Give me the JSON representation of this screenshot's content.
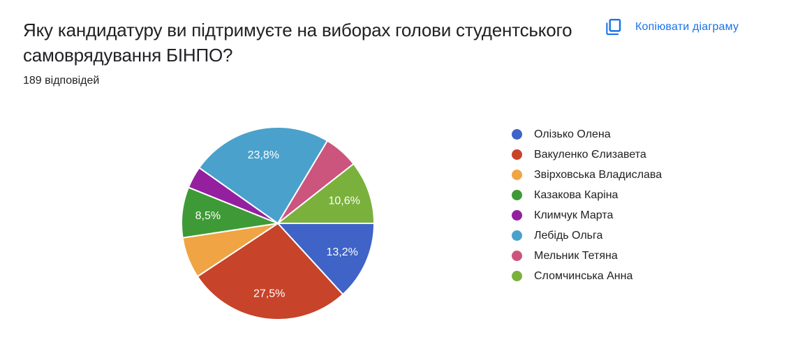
{
  "header": {
    "title": "Яку кандидатуру ви підтримуєте на виборах голови студентського самоврядування БІНПО?",
    "responses_count": "189 відповідей",
    "copy_button_label": "Копіювати діаграму",
    "copy_button_icon": "copy-icon"
  },
  "colors": {
    "accent": "#1a73e8",
    "text_primary": "#202124",
    "background": "#ffffff",
    "slice_label": "#ffffff",
    "slice_separator": "#ffffff"
  },
  "chart_data": {
    "type": "pie",
    "title": "Яку кандидатуру ви підтримуєте на виборах голови студентського самоврядування БІНПО?",
    "total_responses": 189,
    "total_responses_label": "189 відповідей",
    "legend_position": "right",
    "start_angle": "3-oclock, clockwise",
    "slices": [
      {
        "label": "Олізько Олена",
        "percent": 13.2,
        "percent_label": "13,2%",
        "color": "#3F63C6",
        "label_visible": true
      },
      {
        "label": "Вакуленко Єлизавета",
        "percent": 27.5,
        "percent_label": "27,5%",
        "color": "#C7432A",
        "label_visible": true
      },
      {
        "label": "Звірховська Владислава",
        "percent": 6.9,
        "percent_label": "6,9%",
        "color": "#F0A443",
        "label_visible": false
      },
      {
        "label": "Казакова Каріна",
        "percent": 8.5,
        "percent_label": "8,5%",
        "color": "#3E9A36",
        "label_visible": true
      },
      {
        "label": "Климчук Марта",
        "percent": 3.7,
        "percent_label": "3,7%",
        "color": "#9420A0",
        "label_visible": false
      },
      {
        "label": "Лебідь Ольга",
        "percent": 23.8,
        "percent_label": "23,8%",
        "color": "#4AA1CB",
        "label_visible": true
      },
      {
        "label": "Мельник Тетяна",
        "percent": 5.8,
        "percent_label": "5,8%",
        "color": "#CC557D",
        "label_visible": false
      },
      {
        "label": "Сломчинська Анна",
        "percent": 10.6,
        "percent_label": "10,6%",
        "color": "#7AB13C",
        "label_visible": true
      }
    ]
  }
}
